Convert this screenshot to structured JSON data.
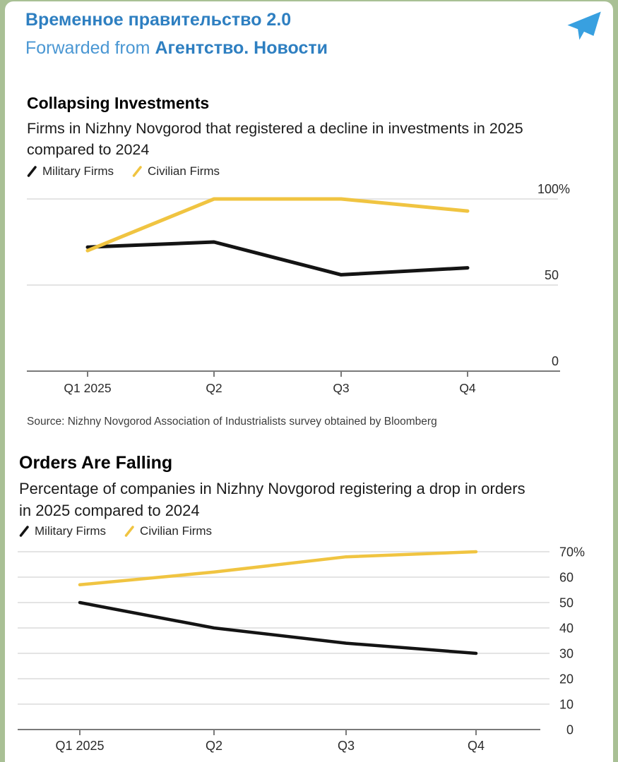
{
  "header": {
    "channel_title": "Временное правительство 2.0",
    "forwarded_prefix": "Forwarded from",
    "forwarded_channel": "Агентство. Новости",
    "icon": "telegram-paper-plane-icon"
  },
  "colors": {
    "header_blue": "#2E7FC1",
    "forwarded_blue": "#4A97D3",
    "telegram_icon_blue": "#38A0E0",
    "military_line": "#141414",
    "civilian_line": "#F0C441",
    "gridline": "#DBDBDB",
    "axis": "#7A7A7A",
    "axis_text": "#2B2B2B",
    "page_edge_green": "#A9C095"
  },
  "chart_data": [
    {
      "type": "line",
      "title": "Collapsing Investments",
      "subtitle": "Firms in Nizhny Novgorod that registered a decline in investments in 2025\ncompared to 2024",
      "legend": [
        {
          "label": "Military Firms",
          "color_key": "military_line"
        },
        {
          "label": "Civilian Firms",
          "color_key": "civilian_line"
        }
      ],
      "categories": [
        "Q1 2025",
        "Q2",
        "Q3",
        "Q4"
      ],
      "series": [
        {
          "name": "Military Firms",
          "color_key": "military_line",
          "values": [
            72,
            75,
            56,
            60
          ]
        },
        {
          "name": "Civilian Firms",
          "color_key": "civilian_line",
          "values": [
            70,
            100,
            100,
            93
          ]
        }
      ],
      "unit": "%",
      "ylim": [
        0,
        100
      ],
      "y_axis": {
        "gridline_values": [
          100,
          50,
          0
        ],
        "labels": [
          "100%",
          "50",
          "0"
        ]
      },
      "grid": "horizontal-only",
      "legend_position": "top-left",
      "source": "Source: Nizhny Novgorod Association of Industrialists survey obtained by Bloomberg"
    },
    {
      "type": "line",
      "title": "Orders Are Falling",
      "subtitle": "Percentage of companies in Nizhny Novgorod registering a drop in orders\nin 2025 compared to 2024",
      "legend": [
        {
          "label": "Military Firms",
          "color_key": "military_line"
        },
        {
          "label": "Civilian Firms",
          "color_key": "civilian_line"
        }
      ],
      "categories": [
        "Q1 2025",
        "Q2",
        "Q3",
        "Q4"
      ],
      "series": [
        {
          "name": "Military Firms",
          "color_key": "military_line",
          "values": [
            50,
            40,
            34,
            30
          ]
        },
        {
          "name": "Civilian Firms",
          "color_key": "civilian_line",
          "values": [
            57,
            62,
            68,
            70
          ]
        }
      ],
      "unit": "%",
      "ylim": [
        0,
        70
      ],
      "y_axis": {
        "gridline_values": [
          70,
          60,
          50,
          40,
          30,
          20,
          10,
          0
        ],
        "labels": [
          "70%",
          "60",
          "50",
          "40",
          "30",
          "20",
          "10",
          "0"
        ]
      },
      "grid": "horizontal-only",
      "legend_position": "top-left"
    }
  ]
}
